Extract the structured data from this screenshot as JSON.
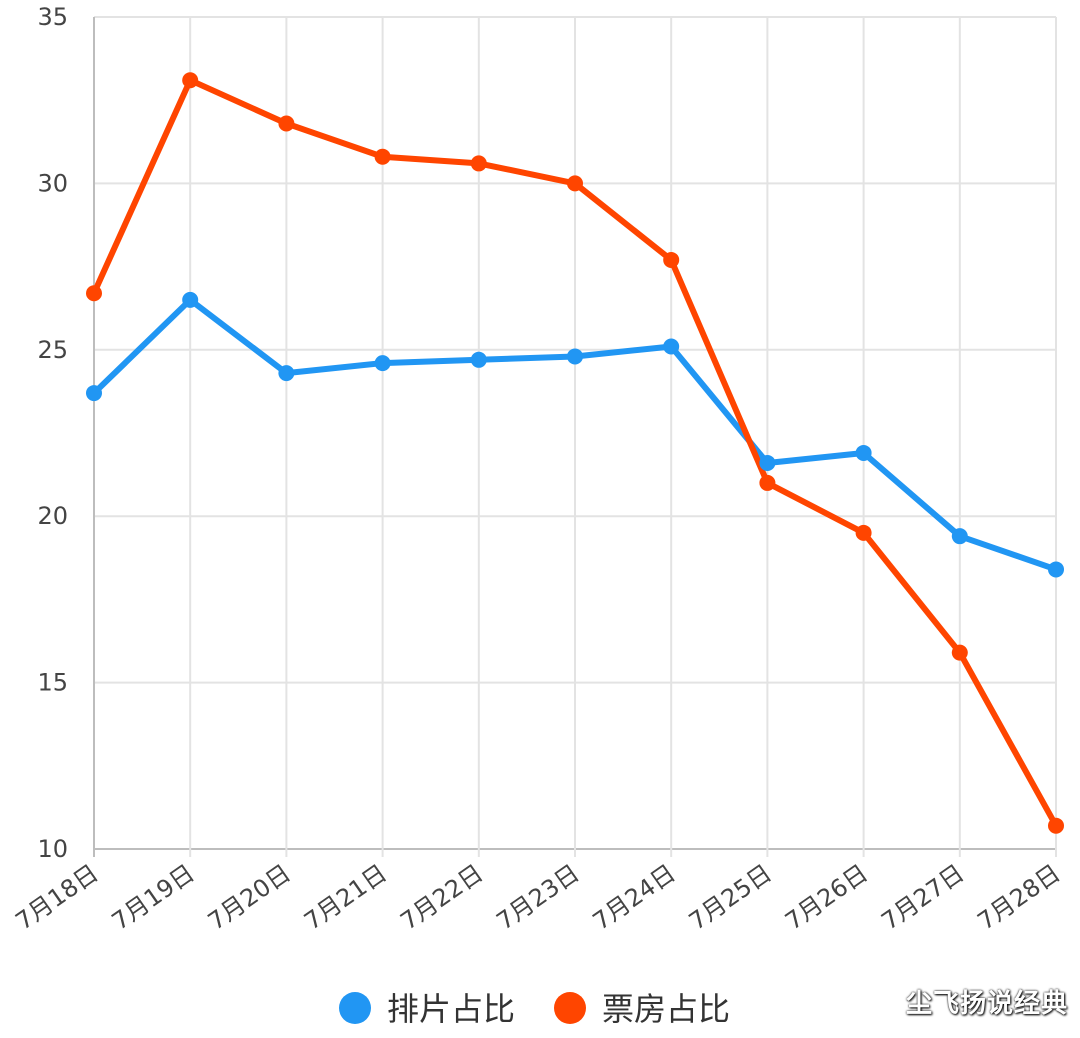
{
  "chart_data": {
    "type": "line",
    "title": "",
    "xlabel": "",
    "ylabel": "",
    "categories": [
      "7月18日",
      "7月19日",
      "7月20日",
      "7月21日",
      "7月22日",
      "7月23日",
      "7月24日",
      "7月25日",
      "7月26日",
      "7月27日",
      "7月28日"
    ],
    "ylim": [
      10,
      35
    ],
    "yticks": [
      10,
      15,
      20,
      25,
      30,
      35
    ],
    "grid": true,
    "legend_position": "bottom",
    "series": [
      {
        "name": "排片占比",
        "color": "#2196F3",
        "values": [
          23.7,
          26.5,
          24.3,
          24.6,
          24.7,
          24.8,
          25.1,
          21.6,
          21.9,
          19.4,
          18.4
        ]
      },
      {
        "name": "票房占比",
        "color": "#FF4500",
        "values": [
          26.7,
          33.1,
          31.8,
          30.8,
          30.6,
          30.0,
          27.7,
          21.0,
          19.5,
          15.9,
          10.7
        ]
      }
    ]
  },
  "watermark": "尘飞扬说经典"
}
